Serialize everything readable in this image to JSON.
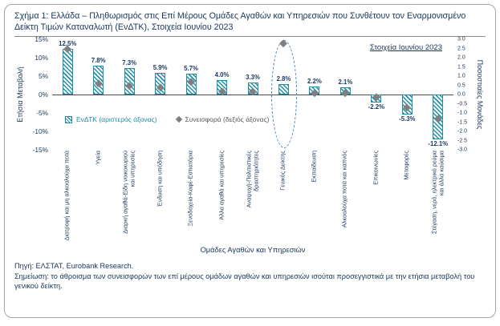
{
  "figure": {
    "title": "Σχήμα 1: Ελλάδα – Πληθωρισμός στις Επί Μέρους Ομάδες Αγαθών και Υπηρεσιών που Συνθέτουν τον Εναρμονισμένο Δείκτη Τιμών Καταναλωτή (ΕνΔΤΚ), Στοιχεία Ιουνίου 2023",
    "annotation": "Στοιχεία Ιουνίου 2023",
    "legend": {
      "bars": "ΕνΔΤΚ (αριστερός άξονας)",
      "contrib": "Συνεισφορά (δεξιός άξονας)"
    },
    "source": "Πηγή: ΕΛΣΤΑΤ, Eurobank Research.",
    "note": "Σημείωση: το άθροισμα των συνεισφορών των επί μέρους ομάδων αγαθών και υπηρεσιών ισούται προσεγγιστικά με την ετήσια μεταβολή του γενικού δείκτη."
  },
  "colors": {
    "navy": "#17365d",
    "teal": "#1f8fa9",
    "gray": "#7f7f7f",
    "ellipse": "#4f81bd",
    "border": "#a6a6a6"
  },
  "chart_data": {
    "type": "bar",
    "title": "Ελλάδα – Πληθωρισμός στις Επί Μέρους Ομάδες Αγαθών και Υπηρεσιών, Στοιχεία Ιουνίου 2023",
    "categories": [
      "Διατροφή και μη αλκοολούχα ποτά",
      "Υγεία",
      "Διαρκή αγαθά-Είδη νοικοκυριού και υπηρεσίες",
      "Ένδυση και υπόδηση",
      "Ξενοδοχεία-Καφέ-Εστιατόρια",
      "Άλλα αγαθά και υπηρεσίες",
      "Αναψυχή-Πολιτιστικές δραστηριότητες",
      "Γενικός Δείκτης",
      "Εκπαίδευση",
      "Αλκοολούχα ποτά και καπνός",
      "Επικοινωνίες",
      "Μεταφορές",
      "Στέγαση, νερό, ηλεκτρικό ρεύμα και άλλα καύσιμα"
    ],
    "series": [
      {
        "name": "ΕνΔΤΚ (αριστερός άξονας)",
        "type": "bar",
        "axis": "left",
        "values": [
          12.5,
          7.8,
          7.3,
          5.9,
          5.7,
          4.0,
          3.3,
          2.8,
          2.2,
          2.1,
          -2.2,
          -5.3,
          -12.1
        ],
        "labels": [
          "12.5%",
          "7.8%",
          "7.3%",
          "5.9%",
          "5.7%",
          "4.0%",
          "3.3%",
          "2.8%",
          "2.2%",
          "2.1%",
          "-2.2%",
          "-5.3%",
          "-12.1%"
        ]
      },
      {
        "name": "Συνεισφορά (δεξιός άξονας)",
        "type": "scatter",
        "marker": "diamond",
        "axis": "right",
        "values": [
          2.5,
          0.6,
          0.5,
          0.4,
          0.7,
          0.2,
          0.2,
          2.8,
          0.1,
          0.1,
          -0.1,
          -0.7,
          -1.3
        ]
      }
    ],
    "left_axis": {
      "label": "Ετήσια Μεταβολή",
      "min": -15,
      "max": 15,
      "ticks": [
        "15%",
        "10%",
        "5%",
        "0%",
        "-5%",
        "-10%",
        "-15%"
      ]
    },
    "right_axis": {
      "label": "Ποσοστιαίες Μονάδες",
      "min": -3.0,
      "max": 3.0,
      "ticks": [
        "3.0",
        "2.5",
        "2.0",
        "1.5",
        "1.0",
        "0.5",
        "0.0",
        "-0.5",
        "-1.0",
        "-1.5",
        "-2.0",
        "-2.5",
        "-3.0"
      ]
    },
    "xlabel": "Ομάδες Αγαθών και Υπηρεσιών",
    "legend_position": "inside-left-below-zero",
    "grid": false,
    "highlight": {
      "category_index": 7,
      "style": "dashed-ellipse"
    }
  }
}
